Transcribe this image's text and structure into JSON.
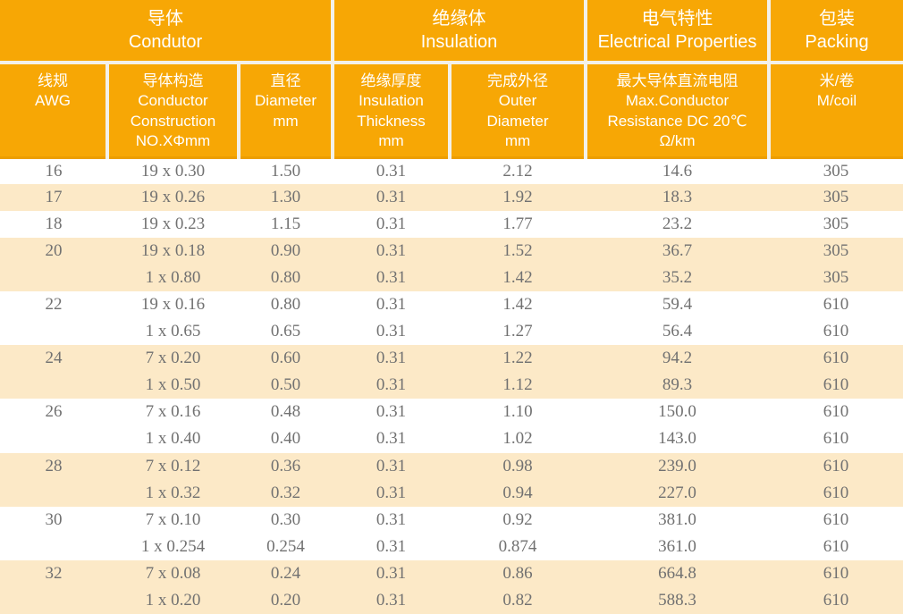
{
  "table": {
    "title_semantic": "AWG wire specification table",
    "colors": {
      "header_bg": "#F7A705",
      "header_bottom_edge": "#EC9E00",
      "row_shade": "#FCE9C7",
      "data_text": "#717171",
      "divider": "#F3F1EA",
      "header_text": "#FFFFFF"
    },
    "column_groups": [
      {
        "label": "导体\nCondutor",
        "span": 3
      },
      {
        "label": "绝缘体\nInsulation",
        "span": 2
      },
      {
        "label": "电气特性\nElectrical Properties",
        "span": 1
      },
      {
        "label": "包装\nPacking",
        "span": 1
      }
    ],
    "columns": [
      {
        "label": "线规\nAWG"
      },
      {
        "label": "导体构造\nConductor\nConstruction\nNO.XΦmm"
      },
      {
        "label": "直径\nDiameter\nmm"
      },
      {
        "label": "绝缘厚度\nInsulation\nThickness\nmm"
      },
      {
        "label": "完成外径\nOuter\nDiameter\nmm"
      },
      {
        "label": "最大导体直流电阻\nMax.Conductor\nResistance DC 20℃\nΩ/km"
      },
      {
        "label": "米/卷\nM/coil"
      }
    ],
    "groups": [
      {
        "awg": "16",
        "rows": [
          [
            "19 x 0.30",
            "1.50",
            "0.31",
            "2.12",
            "14.6",
            "305"
          ]
        ]
      },
      {
        "awg": "17",
        "rows": [
          [
            "19 x 0.26",
            "1.30",
            "0.31",
            "1.92",
            "18.3",
            "305"
          ]
        ]
      },
      {
        "awg": "18",
        "rows": [
          [
            "19 x 0.23",
            "1.15",
            "0.31",
            "1.77",
            "23.2",
            "305"
          ]
        ]
      },
      {
        "awg": "20",
        "rows": [
          [
            "19 x 0.18",
            "0.90",
            "0.31",
            "1.52",
            "36.7",
            "305"
          ],
          [
            "1 x 0.80",
            "0.80",
            "0.31",
            "1.42",
            "35.2",
            "305"
          ]
        ]
      },
      {
        "awg": "22",
        "rows": [
          [
            "19 x 0.16",
            "0.80",
            "0.31",
            "1.42",
            "59.4",
            "610"
          ],
          [
            "1 x 0.65",
            "0.65",
            "0.31",
            "1.27",
            "56.4",
            "610"
          ]
        ]
      },
      {
        "awg": "24",
        "rows": [
          [
            "7 x 0.20",
            "0.60",
            "0.31",
            "1.22",
            "94.2",
            "610"
          ],
          [
            "1 x 0.50",
            "0.50",
            "0.31",
            "1.12",
            "89.3",
            "610"
          ]
        ]
      },
      {
        "awg": "26",
        "rows": [
          [
            "7 x 0.16",
            "0.48",
            "0.31",
            "1.10",
            "150.0",
            "610"
          ],
          [
            "1 x 0.40",
            "0.40",
            "0.31",
            "1.02",
            "143.0",
            "610"
          ]
        ]
      },
      {
        "awg": "28",
        "rows": [
          [
            "7 x 0.12",
            "0.36",
            "0.31",
            "0.98",
            "239.0",
            "610"
          ],
          [
            "1 x 0.32",
            "0.32",
            "0.31",
            "0.94",
            "227.0",
            "610"
          ]
        ]
      },
      {
        "awg": "30",
        "rows": [
          [
            "7 x 0.10",
            "0.30",
            "0.31",
            "0.92",
            "381.0",
            "610"
          ],
          [
            "1 x 0.254",
            "0.254",
            "0.31",
            "0.874",
            "361.0",
            "610"
          ]
        ]
      },
      {
        "awg": "32",
        "rows": [
          [
            "7 x 0.08",
            "0.24",
            "0.31",
            "0.86",
            "664.8",
            "610"
          ],
          [
            "1 x 0.20",
            "0.20",
            "0.31",
            "0.82",
            "588.3",
            "610"
          ]
        ]
      }
    ]
  }
}
